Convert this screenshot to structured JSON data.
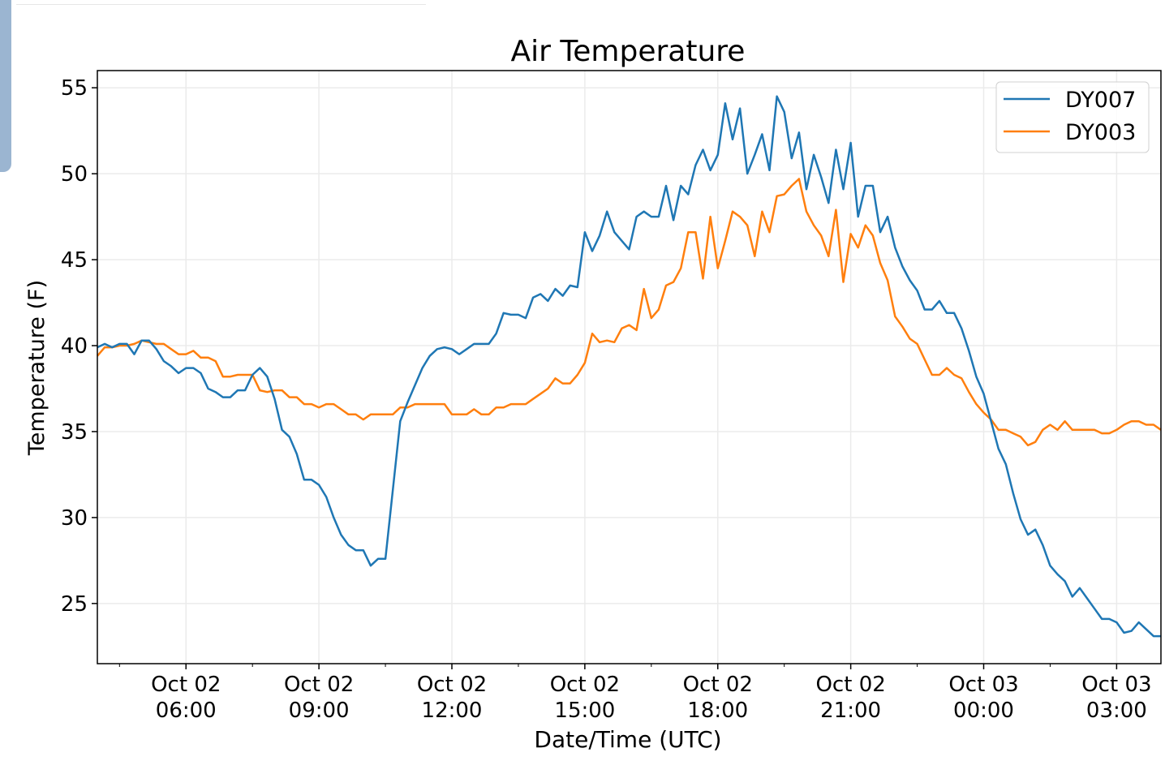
{
  "chart_data": {
    "type": "line",
    "title": "Air Temperature",
    "xlabel": "Date/Time (UTC)",
    "ylabel": "Temperature (F)",
    "x_unit": "hours since Oct 02 00:00 UTC",
    "x_start": 4.0,
    "x_step": 0.1667,
    "xlim": [
      4.0,
      28.0
    ],
    "ylim": [
      21.5,
      56.0
    ],
    "grid": true,
    "legend_position": "top-right",
    "xticks": [
      {
        "value": 6,
        "line1": "Oct 02",
        "line2": "06:00"
      },
      {
        "value": 9,
        "line1": "Oct 02",
        "line2": "09:00"
      },
      {
        "value": 12,
        "line1": "Oct 02",
        "line2": "12:00"
      },
      {
        "value": 15,
        "line1": "Oct 02",
        "line2": "15:00"
      },
      {
        "value": 18,
        "line1": "Oct 02",
        "line2": "18:00"
      },
      {
        "value": 21,
        "line1": "Oct 02",
        "line2": "21:00"
      },
      {
        "value": 24,
        "line1": "Oct 03",
        "line2": "00:00"
      },
      {
        "value": 27,
        "line1": "Oct 03",
        "line2": "03:00"
      }
    ],
    "yticks": [
      "25",
      "30",
      "35",
      "40",
      "45",
      "50",
      "55"
    ],
    "series": [
      {
        "name": "DY007",
        "color": "#1f77b4",
        "values": [
          39.9,
          40.1,
          39.9,
          40.1,
          40.1,
          39.5,
          40.3,
          40.3,
          39.8,
          39.1,
          38.8,
          38.4,
          38.7,
          38.7,
          38.4,
          37.5,
          37.3,
          37.0,
          37.0,
          37.4,
          37.4,
          38.3,
          38.7,
          38.2,
          36.9,
          35.1,
          34.7,
          33.7,
          32.2,
          32.2,
          31.9,
          31.2,
          30.0,
          29.0,
          28.4,
          28.1,
          28.1,
          27.2,
          27.6,
          27.6,
          31.6,
          35.6,
          36.7,
          37.7,
          38.7,
          39.4,
          39.8,
          39.9,
          39.8,
          39.5,
          39.8,
          40.1,
          40.1,
          40.1,
          40.7,
          41.9,
          41.8,
          41.8,
          41.6,
          42.8,
          43.0,
          42.6,
          43.3,
          42.9,
          43.5,
          43.4,
          46.6,
          45.5,
          46.4,
          47.8,
          46.6,
          46.1,
          45.6,
          47.5,
          47.8,
          47.5,
          47.5,
          49.3,
          47.3,
          49.3,
          48.8,
          50.5,
          51.4,
          50.2,
          51.1,
          54.1,
          52.0,
          53.8,
          50.0,
          51.1,
          52.3,
          50.2,
          54.5,
          53.6,
          50.9,
          52.4,
          49.1,
          51.1,
          49.8,
          48.3,
          51.4,
          49.1,
          51.8,
          47.5,
          49.3,
          49.3,
          46.6,
          47.5,
          45.7,
          44.6,
          43.8,
          43.2,
          42.1,
          42.1,
          42.6,
          41.9,
          41.9,
          41.0,
          39.7,
          38.2,
          37.2,
          35.6,
          34.0,
          33.1,
          31.4,
          29.9,
          29.0,
          29.3,
          28.4,
          27.2,
          26.7,
          26.3,
          25.4,
          25.9,
          25.3,
          24.7,
          24.1,
          24.1,
          23.9,
          23.3,
          23.4,
          23.9,
          23.5,
          23.1,
          23.1
        ]
      },
      {
        "name": "DY003",
        "color": "#ff7f0e",
        "values": [
          39.4,
          39.9,
          39.9,
          40.0,
          40.0,
          40.1,
          40.3,
          40.2,
          40.1,
          40.1,
          39.8,
          39.5,
          39.5,
          39.7,
          39.3,
          39.3,
          39.1,
          38.2,
          38.2,
          38.3,
          38.3,
          38.3,
          37.4,
          37.3,
          37.4,
          37.4,
          37.0,
          37.0,
          36.6,
          36.6,
          36.4,
          36.6,
          36.6,
          36.3,
          36.0,
          36.0,
          35.7,
          36.0,
          36.0,
          36.0,
          36.0,
          36.4,
          36.4,
          36.6,
          36.6,
          36.6,
          36.6,
          36.6,
          36.0,
          36.0,
          36.0,
          36.3,
          36.0,
          36.0,
          36.4,
          36.4,
          36.6,
          36.6,
          36.6,
          36.9,
          37.2,
          37.5,
          38.1,
          37.8,
          37.8,
          38.3,
          39.0,
          40.7,
          40.2,
          40.3,
          40.2,
          41.0,
          41.2,
          40.9,
          43.3,
          41.6,
          42.1,
          43.5,
          43.7,
          44.5,
          46.6,
          46.6,
          43.9,
          47.5,
          44.5,
          46.1,
          47.8,
          47.5,
          47.0,
          45.2,
          47.8,
          46.6,
          48.7,
          48.8,
          49.3,
          49.7,
          47.8,
          47.0,
          46.4,
          45.2,
          47.9,
          43.7,
          46.5,
          45.7,
          47.0,
          46.4,
          44.8,
          43.8,
          41.7,
          41.1,
          40.4,
          40.1,
          39.2,
          38.3,
          38.3,
          38.7,
          38.3,
          38.1,
          37.3,
          36.6,
          36.1,
          35.7,
          35.1,
          35.1,
          34.9,
          34.7,
          34.2,
          34.4,
          35.1,
          35.4,
          35.1,
          35.6,
          35.1,
          35.1,
          35.1,
          35.1,
          34.9,
          34.9,
          35.1,
          35.4,
          35.6,
          35.6,
          35.4,
          35.4,
          35.1
        ]
      }
    ]
  }
}
